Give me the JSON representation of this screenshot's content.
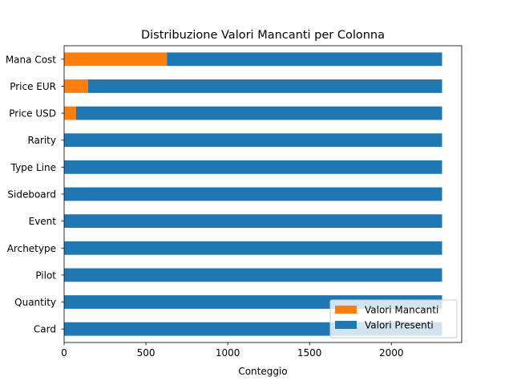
{
  "chart_data": {
    "type": "bar",
    "orientation": "horizontal",
    "stacked": true,
    "title": "Distribuzione Valori Mancanti per Colonna",
    "xlabel": "Conteggio",
    "ylabel": "",
    "xlim": [
      0,
      2430
    ],
    "xticks": [
      0,
      500,
      1000,
      1500,
      2000
    ],
    "categories": [
      "Card",
      "Quantity",
      "Pilot",
      "Archetype",
      "Event",
      "Sideboard",
      "Type Line",
      "Rarity",
      "Price USD",
      "Price EUR",
      "Mana Cost"
    ],
    "series": [
      {
        "name": "Valori Mancanti",
        "color": "#ff7f0e",
        "values": [
          0,
          0,
          0,
          0,
          0,
          0,
          0,
          0,
          72,
          147,
          628
        ]
      },
      {
        "name": "Valori Presenti",
        "color": "#1f77b4",
        "values": [
          2310,
          2310,
          2310,
          2310,
          2310,
          2310,
          2310,
          2310,
          2238,
          2163,
          1682
        ]
      }
    ],
    "legend": {
      "position": "lower-right",
      "entries": [
        "Valori Mancanti",
        "Valori Presenti"
      ]
    },
    "grid": false
  }
}
